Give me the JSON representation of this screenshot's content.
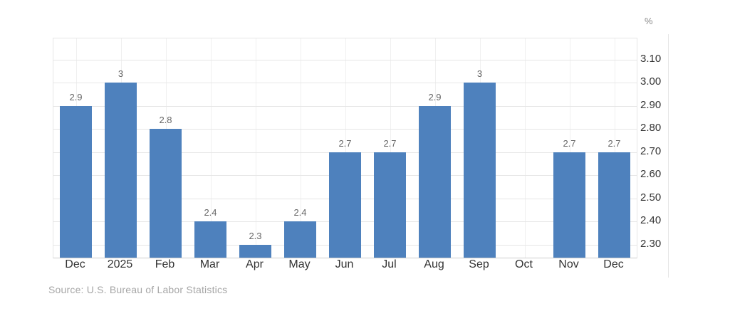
{
  "chart_data": {
    "type": "bar",
    "title": "",
    "categories": [
      "Dec",
      "2025",
      "Feb",
      "Mar",
      "Apr",
      "May",
      "Jun",
      "Jul",
      "Aug",
      "Sep",
      "Oct",
      "Nov",
      "Dec"
    ],
    "values": [
      2.9,
      3,
      2.8,
      2.4,
      2.3,
      2.4,
      2.7,
      2.7,
      2.9,
      3,
      null,
      2.7,
      2.7
    ],
    "bar_labels": [
      "2.9",
      "3",
      "2.8",
      "2.4",
      "2.3",
      "2.4",
      "2.7",
      "2.7",
      "2.9",
      "3",
      "",
      "2.7",
      "2.7"
    ],
    "unit_label": "%",
    "xlabel": "",
    "ylabel": "%",
    "y_ticks": [
      3.1,
      3.0,
      2.9,
      2.8,
      2.7,
      2.6,
      2.5,
      2.4,
      2.3
    ],
    "y_tick_labels": [
      "3.10",
      "3.00",
      "2.90",
      "2.80",
      "2.70",
      "2.60",
      "2.50",
      "2.40",
      "2.30"
    ],
    "ylim": [
      2.244,
      3.191
    ],
    "grid": true,
    "legend_position": "none",
    "bar_color": "#4e81bd"
  },
  "footer": {
    "source_text": "Source: U.S. Bureau of Labor Statistics"
  },
  "colors": {
    "background": "#ffffff",
    "bar": "#4e81bd",
    "grid_horizontal": "#e6e6e6",
    "grid_vertical": "#f0f0f0",
    "axis_line": "#cccccc",
    "value_label": "#666666",
    "axis_text": "#333333",
    "unit_text": "#8a8a8a",
    "source_text": "#a6a6a6"
  }
}
